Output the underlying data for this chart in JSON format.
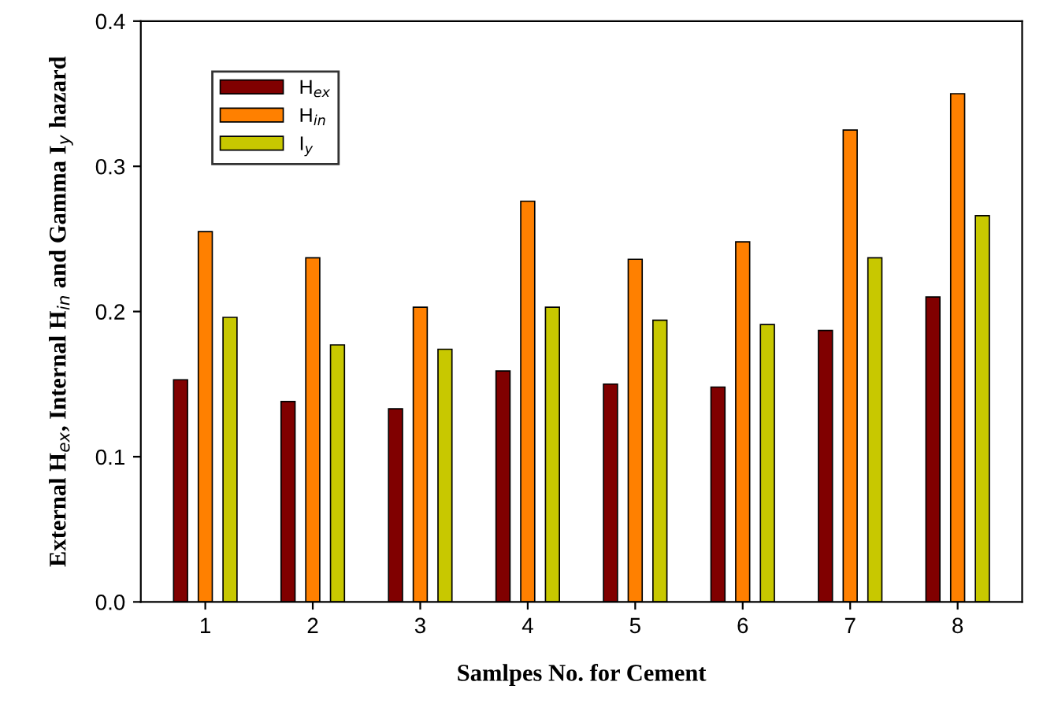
{
  "chart_data": {
    "type": "bar",
    "xlabel": "Samlpes No. for Cement",
    "ylabel": "External H$_{ex}$, Internal H$_{in}$ and Gamma I$_{y}$ hazard",
    "categories": [
      "1",
      "2",
      "3",
      "4",
      "5",
      "6",
      "7",
      "8"
    ],
    "series": [
      {
        "name": "H$_{ex}$",
        "color": "#800000",
        "values": [
          0.153,
          0.138,
          0.133,
          0.159,
          0.15,
          0.148,
          0.187,
          0.21
        ]
      },
      {
        "name": "H$_{in}$",
        "color": "#ff8000",
        "values": [
          0.255,
          0.237,
          0.203,
          0.276,
          0.236,
          0.248,
          0.325,
          0.35
        ]
      },
      {
        "name": "I$_{y}$",
        "color": "#c8c800",
        "values": [
          0.196,
          0.177,
          0.174,
          0.203,
          0.194,
          0.191,
          0.237,
          0.266
        ]
      }
    ],
    "ylim": [
      0,
      0.4
    ],
    "yticks": [
      {
        "value": 0,
        "label": "0.0"
      },
      {
        "value": 0.1,
        "label": "0.1"
      },
      {
        "value": 0.2,
        "label": "0.2"
      },
      {
        "value": 0.3,
        "label": "0.3"
      },
      {
        "value": 0.4,
        "label": "0.4"
      }
    ],
    "legend": "top left",
    "grid": false
  }
}
